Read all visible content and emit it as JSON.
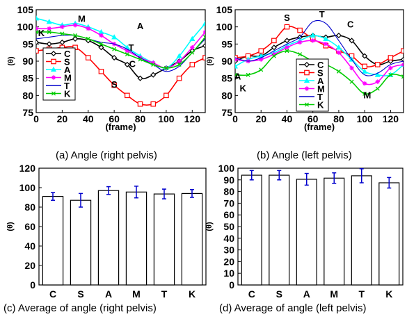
{
  "captions": {
    "a": "(a) Angle (right pelvis)",
    "b": "(b) Angle (left pelvis)",
    "c": "(c) Average of angle (right pelvis)",
    "d": "(d) Average of angle (left pelvis)"
  },
  "colors": {
    "C": "#000000",
    "S": "#ff0000",
    "A": "#00ffff",
    "M": "#ff00ff",
    "T": "#0000cc",
    "K": "#00cc00",
    "errorbar": "#0000cc"
  },
  "chart_data": [
    {
      "id": "a",
      "type": "line",
      "xlabel": "(frame)",
      "ylabel": "(θ)",
      "xlim": [
        0,
        130
      ],
      "ylim": [
        75,
        105
      ],
      "xticks": [
        0,
        20,
        40,
        60,
        80,
        100,
        120
      ],
      "yticks": [
        75,
        80,
        85,
        90,
        95,
        100,
        105
      ],
      "legend_position": "lower-left",
      "legend": [
        "C",
        "S",
        "A",
        "M",
        "T",
        "K"
      ],
      "series": [
        {
          "name": "C",
          "marker": "diamond",
          "x": [
            0,
            10,
            20,
            30,
            40,
            50,
            60,
            70,
            80,
            90,
            100,
            110,
            120,
            130
          ],
          "y": [
            95.5,
            95,
            95.5,
            96.5,
            96,
            94,
            91,
            89,
            85,
            86,
            88,
            90,
            93,
            94.5
          ]
        },
        {
          "name": "S",
          "marker": "square",
          "x": [
            0,
            10,
            20,
            30,
            40,
            50,
            60,
            70,
            80,
            90,
            100,
            110,
            120,
            130
          ],
          "y": [
            93,
            93.5,
            94,
            94,
            91,
            87,
            83,
            80,
            77.5,
            77.5,
            80,
            85,
            89,
            91
          ]
        },
        {
          "name": "A",
          "marker": "triangle",
          "x": [
            0,
            10,
            20,
            30,
            40,
            50,
            60,
            70,
            80,
            90,
            100,
            110,
            120,
            130
          ],
          "y": [
            102.5,
            101.5,
            100.5,
            101,
            100,
            98.5,
            97,
            94,
            91.5,
            89.5,
            88,
            91.5,
            96.5,
            101
          ]
        },
        {
          "name": "M",
          "marker": "star",
          "x": [
            0,
            10,
            20,
            30,
            40,
            50,
            60,
            70,
            80,
            90,
            100,
            110,
            120,
            130
          ],
          "y": [
            99.5,
            99.5,
            100,
            100.5,
            99.5,
            97.5,
            95,
            93,
            91,
            89.5,
            88,
            90,
            94,
            98.5
          ]
        },
        {
          "name": "T",
          "marker": "none",
          "x": [
            0,
            10,
            20,
            30,
            40,
            50,
            60,
            70,
            80,
            90,
            100,
            110,
            120,
            130
          ],
          "y": [
            96.5,
            97,
            97.5,
            97.5,
            96.5,
            95.5,
            95,
            93.5,
            91,
            89,
            87,
            88.5,
            92.5,
            96.5
          ]
        },
        {
          "name": "K",
          "marker": "x",
          "x": [
            0,
            10,
            20,
            30,
            40,
            50,
            60,
            70,
            80,
            90,
            100,
            110,
            120,
            130
          ],
          "y": [
            98.5,
            98.5,
            98,
            97.5,
            96.5,
            95,
            93.5,
            92,
            90.5,
            89,
            88,
            89,
            92.5,
            97
          ]
        }
      ],
      "annotations": [
        {
          "text": "M",
          "x": 35,
          "y": 101.5
        },
        {
          "text": "A",
          "x": 80,
          "y": 99.3
        },
        {
          "text": "K",
          "x": 4,
          "y": 97.3
        },
        {
          "text": "T",
          "x": 73,
          "y": 93
        },
        {
          "text": "C",
          "x": 74,
          "y": 88.3
        },
        {
          "text": "S",
          "x": 60,
          "y": 82.3
        }
      ]
    },
    {
      "id": "b",
      "type": "line",
      "xlabel": "(frame)",
      "ylabel": "(θ)",
      "xlim": [
        0,
        130
      ],
      "ylim": [
        75,
        105
      ],
      "xticks": [
        0,
        20,
        40,
        60,
        80,
        100,
        120
      ],
      "yticks": [
        75,
        80,
        85,
        90,
        95,
        100,
        105
      ],
      "legend_position": "lower-center",
      "legend": [
        "C",
        "S",
        "A",
        "M",
        "T",
        "K"
      ],
      "series": [
        {
          "name": "C",
          "marker": "diamond",
          "x": [
            0,
            10,
            20,
            30,
            40,
            50,
            60,
            70,
            80,
            90,
            100,
            110,
            120,
            130
          ],
          "y": [
            90,
            91.5,
            91.5,
            94,
            96,
            97,
            97.5,
            97,
            97.5,
            96,
            91.5,
            89,
            90,
            90.5
          ]
        },
        {
          "name": "S",
          "marker": "square",
          "x": [
            0,
            10,
            20,
            30,
            40,
            50,
            60,
            70,
            80,
            90,
            100,
            110,
            120,
            130
          ],
          "y": [
            91,
            91.5,
            93,
            96,
            100,
            99,
            96.5,
            94.5,
            93,
            91.5,
            88.5,
            89,
            91,
            93
          ]
        },
        {
          "name": "A",
          "marker": "triangle",
          "x": [
            0,
            10,
            20,
            30,
            40,
            50,
            60,
            70,
            80,
            90,
            100,
            110,
            120,
            130
          ],
          "y": [
            88.5,
            90.5,
            91.5,
            92.5,
            94.5,
            96,
            97.5,
            96.5,
            94,
            90.5,
            87,
            86,
            86,
            89
          ]
        },
        {
          "name": "M",
          "marker": "star",
          "x": [
            0,
            10,
            20,
            30,
            40,
            50,
            60,
            70,
            80,
            90,
            100,
            110,
            120,
            130
          ],
          "y": [
            90.5,
            90,
            90.5,
            92,
            94,
            95.5,
            96,
            95,
            92.5,
            88,
            83.5,
            84,
            88,
            89
          ]
        },
        {
          "name": "T",
          "marker": "none",
          "x": [
            0,
            10,
            20,
            30,
            40,
            50,
            60,
            70,
            80,
            90,
            100,
            110,
            120,
            130
          ],
          "y": [
            91,
            90,
            91,
            93,
            95,
            97,
            101.5,
            101,
            96,
            90.5,
            86,
            86.5,
            89,
            90
          ]
        },
        {
          "name": "K",
          "marker": "x",
          "x": [
            0,
            10,
            20,
            30,
            40,
            50,
            60,
            70,
            80,
            90,
            100,
            110,
            120,
            130
          ],
          "y": [
            86,
            86,
            87.5,
            91.5,
            93,
            92,
            90,
            89,
            87,
            84,
            80.5,
            82,
            86,
            85.5
          ]
        }
      ],
      "annotations": [
        {
          "text": "S",
          "x": 40,
          "y": 101.8
        },
        {
          "text": "T",
          "x": 67,
          "y": 102.8
        },
        {
          "text": "C",
          "x": 89,
          "y": 99.8
        },
        {
          "text": "A",
          "x": 2,
          "y": 84.6
        },
        {
          "text": "K",
          "x": 6,
          "y": 81.2
        },
        {
          "text": "M",
          "x": 102,
          "y": 79.2
        }
      ]
    },
    {
      "id": "c",
      "type": "bar",
      "ylabel": "(θ)",
      "ylim": [
        0,
        120
      ],
      "yticks": [
        0,
        20,
        40,
        60,
        80,
        100,
        120
      ],
      "categories": [
        "C",
        "S",
        "A",
        "M",
        "T",
        "K"
      ],
      "values": [
        91,
        87,
        97,
        95.5,
        93.5,
        94
      ],
      "errors": [
        4,
        7,
        4,
        6,
        5,
        4
      ]
    },
    {
      "id": "d",
      "type": "bar",
      "ylabel": "(θ)",
      "ylim": [
        0,
        100
      ],
      "yticks": [
        0,
        10,
        20,
        30,
        40,
        50,
        60,
        70,
        80,
        90,
        100
      ],
      "categories": [
        "C",
        "S",
        "A",
        "M",
        "T",
        "K"
      ],
      "values": [
        94,
        94,
        90.5,
        91.5,
        93.5,
        87.5
      ],
      "errors": [
        4,
        4,
        5,
        4.5,
        6,
        4.5
      ]
    }
  ]
}
